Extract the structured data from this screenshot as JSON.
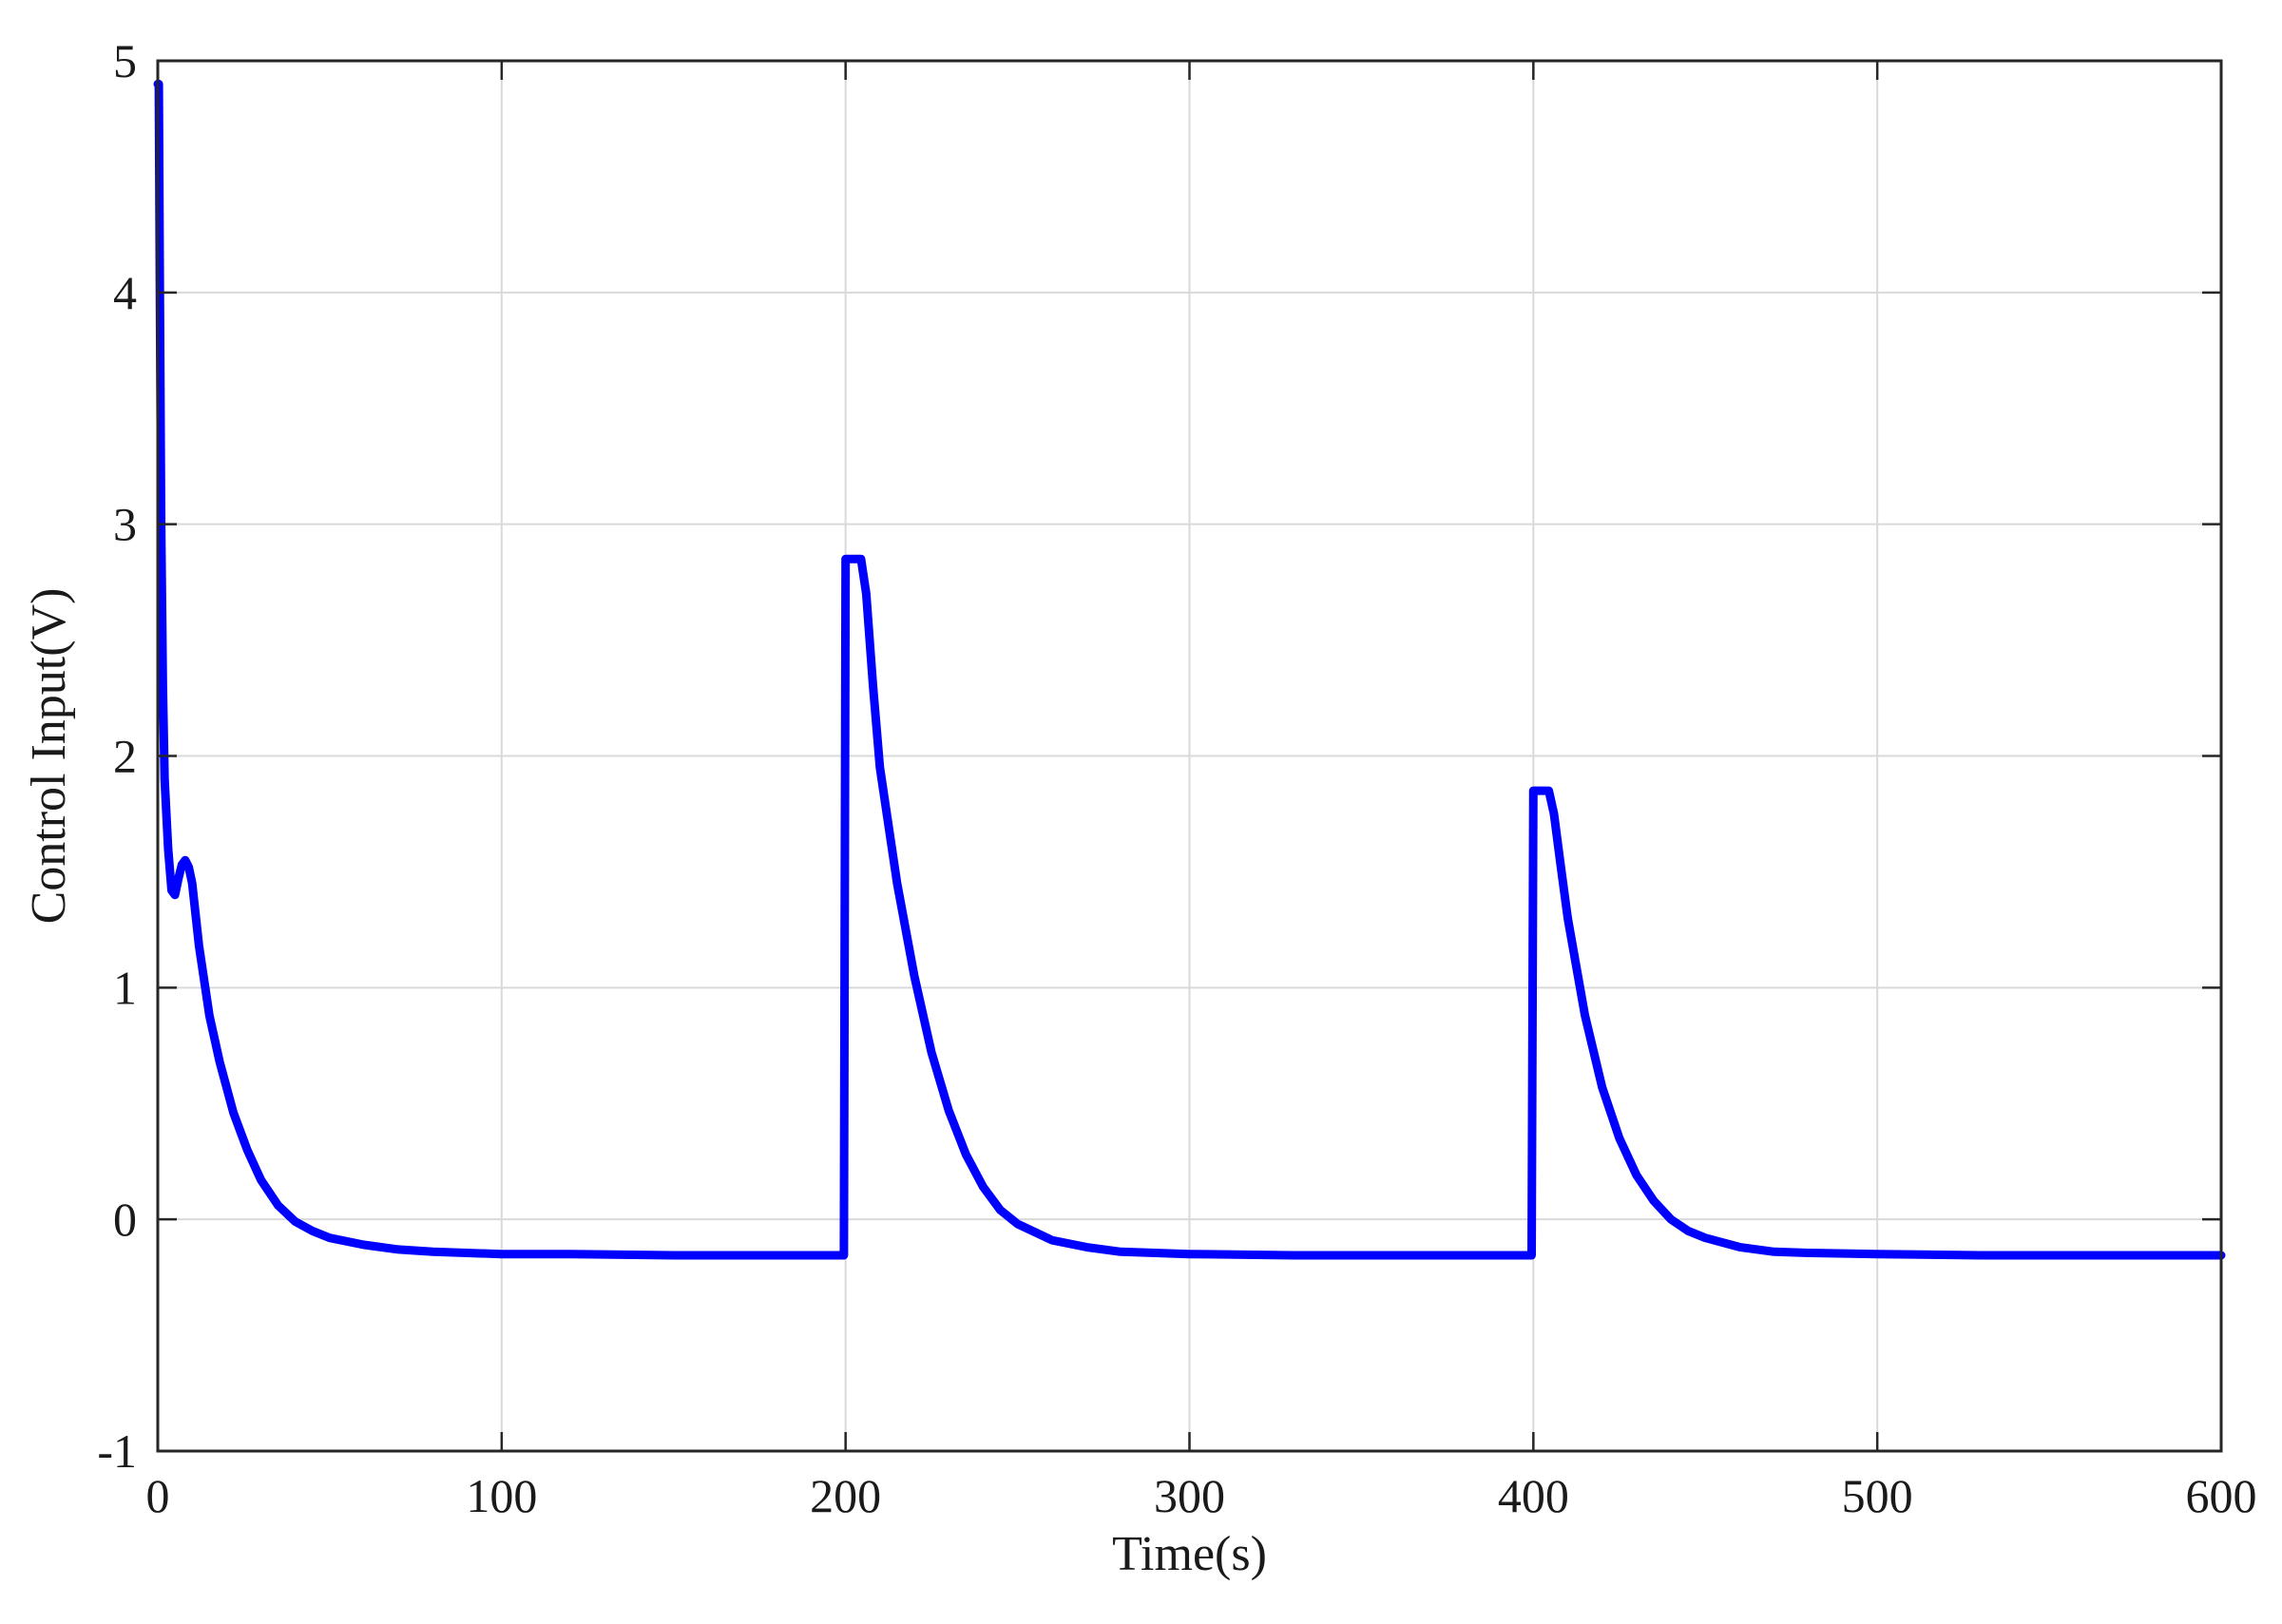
{
  "chart_data": {
    "type": "line",
    "title": "",
    "xlabel": "Time(s)",
    "ylabel": "Control Input(V)",
    "xlim": [
      0,
      600
    ],
    "ylim": [
      -1,
      5
    ],
    "x_ticks": [
      0,
      100,
      200,
      300,
      400,
      500,
      600
    ],
    "y_ticks": [
      -1,
      0,
      1,
      2,
      3,
      4,
      5
    ],
    "x_tick_labels": [
      "0",
      "100",
      "200",
      "300",
      "400",
      "500",
      "600"
    ],
    "y_tick_labels": [
      "-1",
      "0",
      "1",
      "2",
      "3",
      "4",
      "5"
    ],
    "grid": true,
    "legend": "none",
    "series": [
      {
        "color": "#0000ff",
        "x": [
          0,
          0.3,
          0.6,
          1,
          1.5,
          2,
          3,
          4,
          5,
          6,
          7,
          8,
          9,
          10,
          12,
          15,
          18,
          22,
          26,
          30,
          35,
          40,
          45,
          50,
          60,
          70,
          80,
          100,
          120,
          150,
          180,
          199.5,
          200,
          200.6,
          202,
          204.5,
          206,
          208,
          210,
          215,
          220,
          225,
          230,
          235,
          240,
          245,
          250,
          260,
          270,
          280,
          300,
          330,
          360,
          399.5,
          400,
          400.6,
          402,
          404.5,
          406,
          408,
          410,
          415,
          420,
          425,
          430,
          435,
          440,
          445,
          450,
          460,
          470,
          480,
          500,
          530,
          560,
          600
        ],
        "y": [
          4.9,
          4.9,
          4.0,
          3.0,
          2.3,
          1.9,
          1.6,
          1.42,
          1.4,
          1.47,
          1.53,
          1.55,
          1.52,
          1.45,
          1.18,
          0.88,
          0.68,
          0.46,
          0.3,
          0.17,
          0.06,
          -0.01,
          -0.05,
          -0.08,
          -0.11,
          -0.13,
          -0.14,
          -0.15,
          -0.15,
          -0.155,
          -0.155,
          -0.155,
          2.85,
          2.85,
          2.85,
          2.85,
          2.7,
          2.3,
          1.95,
          1.45,
          1.05,
          0.72,
          0.47,
          0.28,
          0.14,
          0.04,
          -0.02,
          -0.09,
          -0.12,
          -0.14,
          -0.15,
          -0.155,
          -0.155,
          -0.155,
          1.85,
          1.85,
          1.85,
          1.85,
          1.75,
          1.52,
          1.3,
          0.88,
          0.57,
          0.35,
          0.19,
          0.08,
          0.0,
          -0.05,
          -0.08,
          -0.12,
          -0.14,
          -0.145,
          -0.15,
          -0.155,
          -0.155,
          -0.155
        ]
      }
    ]
  }
}
